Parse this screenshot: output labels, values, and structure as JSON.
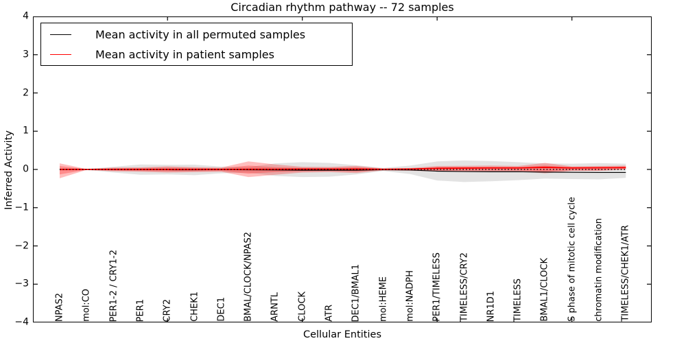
{
  "window": {
    "background": "#ffffff"
  },
  "legend": {
    "position": "upper left",
    "entries": [
      {
        "label": "Mean activity in all permuted samples",
        "color": "#000000"
      },
      {
        "label": "Mean activity in patient samples",
        "color": "#ff0000"
      }
    ]
  },
  "chart_data": {
    "type": "line",
    "title": "Circadian rhythm pathway -- 72 samples",
    "xlabel": "Cellular Entities",
    "ylabel": "Inferred Activity",
    "ylim": [
      -4,
      4
    ],
    "grid": false,
    "yticks": [
      {
        "value": 4,
        "label": "4"
      },
      {
        "value": 3,
        "label": "3"
      },
      {
        "value": 2,
        "label": "2"
      },
      {
        "value": 1,
        "label": "1"
      },
      {
        "value": 0,
        "label": "0"
      },
      {
        "value": -1,
        "label": "−1"
      },
      {
        "value": -2,
        "label": "−2"
      },
      {
        "value": -3,
        "label": "−3"
      },
      {
        "value": -4,
        "label": "−4"
      }
    ],
    "x_major_tick_indices": [
      4,
      9,
      14,
      19
    ],
    "categories": [
      "NPAS2",
      "mol:CO",
      "PER1-2 / CRY1-2",
      "PER1",
      "CRY2",
      "CHEK1",
      "DEC1",
      "BMAL/CLOCK/NPAS2",
      "ARNTL",
      "CLOCK",
      "ATR",
      "DEC1/BMAL1",
      "mol:HEME",
      "mol:NADPH",
      "PER1/TIMELESS",
      "TIMELESS/CRY2",
      "NR1D1",
      "TIMELESS",
      "BMAL1/CLOCK",
      "S phase of mitotic cell cycle",
      "chromatin modification",
      "TIMELESS/CHEK1/ATR"
    ],
    "series": [
      {
        "name": "Mean activity in all permuted samples",
        "color": "#000000",
        "width": 1.2,
        "values": [
          0,
          0,
          0,
          -0.005,
          -0.008,
          -0.01,
          -0.005,
          -0.01,
          -0.015,
          -0.02,
          -0.02,
          -0.02,
          -0.008,
          -0.015,
          -0.045,
          -0.055,
          -0.06,
          -0.06,
          -0.07,
          -0.075,
          -0.08,
          -0.08
        ]
      },
      {
        "name": "Mean activity in patient samples",
        "color": "#ff0000",
        "width": 1.8,
        "values": [
          0,
          0,
          0,
          0,
          0,
          0,
          0,
          0.003,
          0.005,
          0.008,
          0.008,
          0.01,
          0.003,
          0.01,
          0.03,
          0.035,
          0.04,
          0.04,
          0.055,
          0.04,
          0.045,
          0.05
        ]
      }
    ],
    "bands": [
      {
        "name": "permuted-samples-range",
        "color": "rgba(0,0,0,0.11)",
        "upper": [
          0.03,
          0.015,
          0.07,
          0.13,
          0.12,
          0.125,
          0.075,
          0.06,
          0.16,
          0.19,
          0.17,
          0.11,
          0.04,
          0.1,
          0.21,
          0.235,
          0.22,
          0.19,
          0.16,
          0.15,
          0.165,
          0.15
        ],
        "lower": [
          -0.03,
          -0.015,
          -0.08,
          -0.14,
          -0.13,
          -0.15,
          -0.1,
          -0.08,
          -0.17,
          -0.2,
          -0.19,
          -0.13,
          -0.04,
          -0.12,
          -0.29,
          -0.33,
          -0.31,
          -0.28,
          -0.24,
          -0.25,
          -0.26,
          -0.22
        ]
      },
      {
        "name": "patient-samples-range-outer",
        "color": "rgba(255,0,0,0.26)",
        "upper": [
          0.16,
          0.012,
          0.05,
          0.055,
          0.08,
          0.06,
          0.05,
          0.21,
          0.13,
          0.07,
          0.065,
          0.095,
          0.025,
          0.035,
          0.09,
          0.095,
          0.1,
          0.09,
          0.17,
          0.08,
          0.09,
          0.1
        ],
        "lower": [
          -0.23,
          -0.012,
          -0.05,
          -0.06,
          -0.08,
          -0.07,
          -0.06,
          -0.2,
          -0.14,
          -0.08,
          -0.07,
          -0.095,
          -0.025,
          -0.035,
          -0.05,
          -0.05,
          -0.05,
          -0.05,
          -0.1,
          -0.04,
          -0.04,
          0.0
        ]
      },
      {
        "name": "patient-samples-range-inner",
        "color": "rgba(255,0,0,0.26)",
        "upper": [
          0.09,
          0.008,
          0.03,
          0.035,
          0.05,
          0.04,
          0.03,
          0.1,
          0.06,
          0.04,
          0.04,
          0.055,
          0.015,
          0.02,
          0.055,
          0.06,
          0.06,
          0.055,
          0.1,
          0.05,
          0.055,
          0.07
        ],
        "lower": [
          -0.13,
          -0.008,
          -0.03,
          -0.04,
          -0.05,
          -0.045,
          -0.04,
          -0.11,
          -0.07,
          -0.05,
          -0.04,
          -0.055,
          -0.015,
          -0.02,
          -0.03,
          -0.03,
          -0.03,
          -0.03,
          -0.06,
          -0.02,
          -0.02,
          0.01
        ]
      }
    ],
    "zero_line": {
      "style": "dotted",
      "color": "#000000",
      "value": 0
    }
  }
}
